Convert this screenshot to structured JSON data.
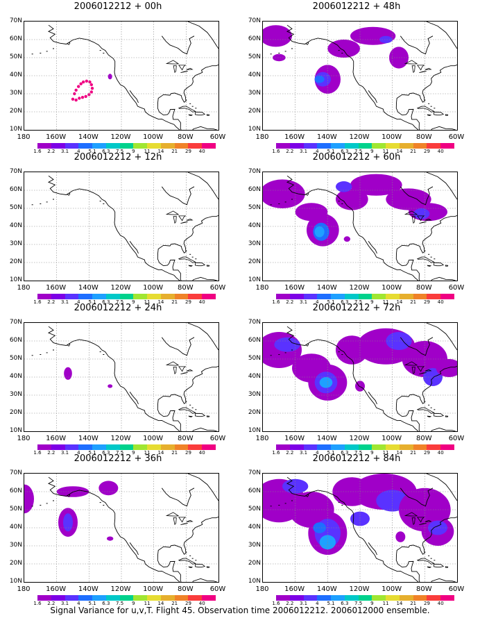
{
  "caption": "Signal Variance for u,v,T. Flight 45. Observation time 2006012212. 2006012000 ensemble.",
  "y_ticks": [
    "70N",
    "60N",
    "50N",
    "40N",
    "30N",
    "20N",
    "10N"
  ],
  "x_ticks": [
    "180",
    "160W",
    "140W",
    "120W",
    "100W",
    "80W",
    "60W"
  ],
  "colorbar": {
    "labels": [
      "1.6",
      "2.2",
      "3.1",
      "4",
      "5.1",
      "6.3",
      "7.5",
      "9",
      "11",
      "14",
      "21",
      "29",
      "40"
    ],
    "colors": [
      "#a000c8",
      "#7d00e6",
      "#5a32ff",
      "#1e6eff",
      "#1ea0ff",
      "#00c8c8",
      "#00d28c",
      "#a0e632",
      "#e6dc32",
      "#e6af2d",
      "#f08228",
      "#fa3c3c",
      "#f00082"
    ]
  },
  "panels": [
    {
      "title": "2006012212 + 00h",
      "col": 0,
      "row": 0,
      "lead_hours": 0
    },
    {
      "title": "2006012212 + 12h",
      "col": 0,
      "row": 1,
      "lead_hours": 12
    },
    {
      "title": "2006012212 + 24h",
      "col": 0,
      "row": 2,
      "lead_hours": 24
    },
    {
      "title": "2006012212 + 36h",
      "col": 0,
      "row": 3,
      "lead_hours": 36
    },
    {
      "title": "2006012212 + 48h",
      "col": 1,
      "row": 0,
      "lead_hours": 48
    },
    {
      "title": "2006012212 + 60h",
      "col": 1,
      "row": 1,
      "lead_hours": 60
    },
    {
      "title": "2006012212 + 72h",
      "col": 1,
      "row": 2,
      "lead_hours": 72
    },
    {
      "title": "2006012212 + 84h",
      "col": 1,
      "row": 3,
      "lead_hours": 84
    }
  ]
}
